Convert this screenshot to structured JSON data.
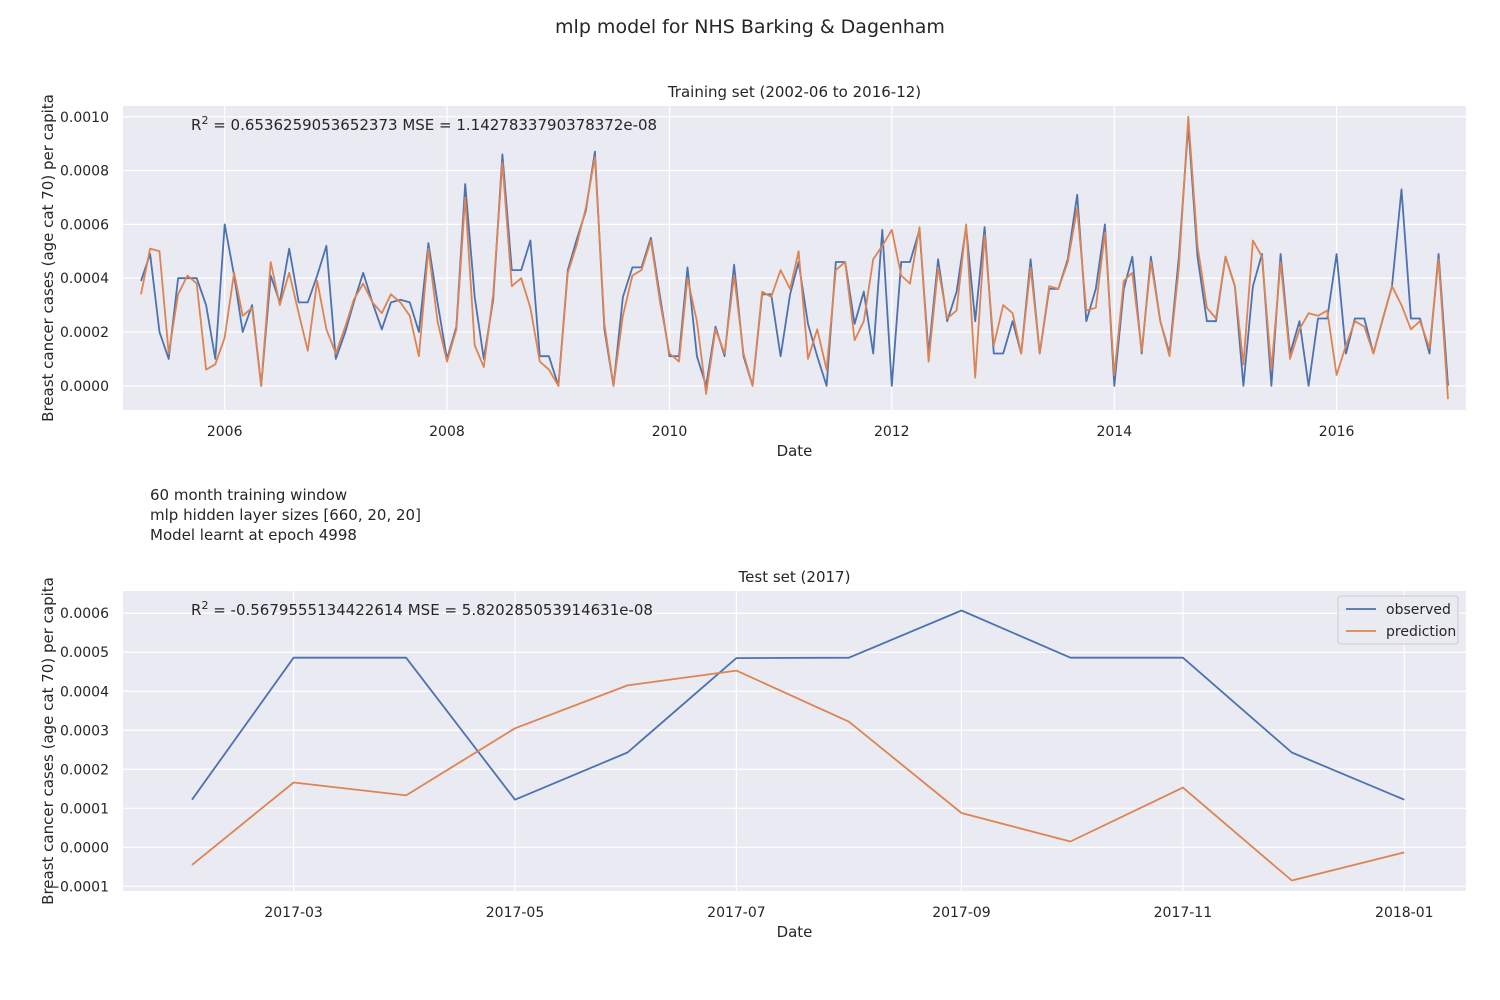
{
  "page_title": "mlp model for NHS Barking & Dagenham",
  "annotation_lines": [
    "60 month training window",
    "mlp hidden layer sizes [660, 20, 20]",
    "Model learnt at epoch 4998"
  ],
  "colors": {
    "observed": "#4c72b0",
    "prediction": "#dd8452",
    "plot_bg": "#eaeaf2",
    "grid": "#ffffff"
  },
  "chart_data": [
    {
      "type": "line",
      "title": "Training set (2002-06 to 2016-12)",
      "xlabel": "Date",
      "ylabel": "Breast cancer cases (age cat 70) per capita",
      "stats_prefix": "R",
      "stats_sup": "2",
      "stats_text": " = 0.6536259053652373  MSE = 1.1427833790378372e-08",
      "xlim": [
        "2005-02-01",
        "2017-03-01"
      ],
      "ylim": [
        -9e-05,
        0.00104
      ],
      "xticks": [
        {
          "date": "2006-01-01",
          "label": "2006"
        },
        {
          "date": "2008-01-01",
          "label": "2008"
        },
        {
          "date": "2010-01-01",
          "label": "2010"
        },
        {
          "date": "2012-01-01",
          "label": "2012"
        },
        {
          "date": "2014-01-01",
          "label": "2014"
        },
        {
          "date": "2016-01-01",
          "label": "2016"
        }
      ],
      "yticks": [
        0.0,
        0.0002,
        0.0004,
        0.0006,
        0.0008,
        0.001
      ],
      "ytick_labels": [
        "0.0000",
        "0.0002",
        "0.0004",
        "0.0006",
        "0.0008",
        "0.0010"
      ],
      "x_start": "2005-04-01",
      "series": [
        {
          "name": "observed",
          "values": [
            0.00039,
            0.00049,
            0.0002,
            0.0001,
            0.0004,
            0.0004,
            0.0004,
            0.0003,
            0.0001,
            0.0006,
            0.00041,
            0.0002,
            0.0003,
            0.0,
            0.00041,
            0.00031,
            0.00051,
            0.00031,
            0.00031,
            0.00041,
            0.00052,
            0.0001,
            0.0002,
            0.00031,
            0.00042,
            0.00031,
            0.00021,
            0.00031,
            0.00032,
            0.00031,
            0.0002,
            0.00053,
            0.00031,
            0.0001,
            0.00022,
            0.00075,
            0.00033,
            0.0001,
            0.00032,
            0.00086,
            0.00043,
            0.00043,
            0.00054,
            0.00011,
            0.00011,
            0.0,
            0.00043,
            0.00054,
            0.00065,
            0.00087,
            0.00021,
            0.0,
            0.00033,
            0.00044,
            0.00044,
            0.00055,
            0.00033,
            0.00011,
            0.00011,
            0.00044,
            0.00011,
            0.0,
            0.00022,
            0.00011,
            0.00045,
            0.00011,
            0.0,
            0.00034,
            0.00034,
            0.00011,
            0.00034,
            0.00046,
            0.00023,
            0.00011,
            0.0,
            0.00046,
            0.00046,
            0.00023,
            0.00035,
            0.00012,
            0.00058,
            0.0,
            0.00046,
            0.00046,
            0.00058,
            0.00012,
            0.00047,
            0.00024,
            0.00035,
            0.00059,
            0.00024,
            0.00059,
            0.00012,
            0.00012,
            0.00024,
            0.00012,
            0.00047,
            0.00012,
            0.00036,
            0.00036,
            0.00047,
            0.00071,
            0.00024,
            0.00036,
            0.0006,
            0.0,
            0.00036,
            0.00048,
            0.00012,
            0.00048,
            0.00024,
            0.00012,
            0.00048,
            0.00097,
            0.00048,
            0.00024,
            0.00024,
            0.00048,
            0.00037,
            0.0,
            0.00037,
            0.00049,
            0.0,
            0.00049,
            0.00012,
            0.00024,
            0.0,
            0.00025,
            0.00025,
            0.00049,
            0.00012,
            0.00025,
            0.00025,
            0.00012,
            0.00025,
            0.00037,
            0.00073,
            0.00025,
            0.00025,
            0.00012,
            0.00049,
            0.0
          ]
        },
        {
          "name": "prediction",
          "values": [
            0.00034,
            0.00051,
            0.0005,
            0.00012,
            0.00034,
            0.00041,
            0.00038,
            6e-05,
            8e-05,
            0.00018,
            0.00042,
            0.00026,
            0.00029,
            0.0,
            0.00046,
            0.0003,
            0.00042,
            0.00027,
            0.00013,
            0.00039,
            0.00021,
            0.00012,
            0.00022,
            0.00032,
            0.00038,
            0.00031,
            0.00027,
            0.00034,
            0.00031,
            0.00026,
            0.00011,
            0.00051,
            0.00024,
            9e-05,
            0.00021,
            0.0007,
            0.00015,
            7e-05,
            0.00034,
            0.00083,
            0.00037,
            0.0004,
            0.00029,
            9e-05,
            6e-05,
            0.0,
            0.00042,
            0.00052,
            0.00066,
            0.00085,
            0.00023,
            0.0,
            0.00026,
            0.00041,
            0.00043,
            0.00054,
            0.00031,
            0.00012,
            9e-05,
            0.0004,
            0.00024,
            -3e-05,
            0.00021,
            0.00012,
            0.00041,
            0.00012,
            0.0,
            0.00035,
            0.00033,
            0.00043,
            0.00036,
            0.0005,
            0.0001,
            0.00021,
            6e-05,
            0.00043,
            0.00046,
            0.00017,
            0.00024,
            0.00047,
            0.00052,
            0.00058,
            0.00041,
            0.00038,
            0.00059,
            9e-05,
            0.00044,
            0.00025,
            0.00028,
            0.0006,
            3e-05,
            0.00056,
            0.00015,
            0.0003,
            0.00027,
            0.00012,
            0.00044,
            0.00012,
            0.00037,
            0.00036,
            0.00046,
            0.00066,
            0.00028,
            0.00029,
            0.00057,
            4e-05,
            0.00039,
            0.00042,
            0.00013,
            0.00046,
            0.00024,
            0.00011,
            0.00044,
            0.001,
            0.00052,
            0.00029,
            0.00025,
            0.00048,
            0.00037,
            8e-05,
            0.00054,
            0.00048,
            6e-05,
            0.00046,
            0.0001,
            0.00021,
            0.00027,
            0.00026,
            0.00028,
            4e-05,
            0.00015,
            0.00024,
            0.00022,
            0.00012,
            0.00025,
            0.00037,
            0.0003,
            0.00021,
            0.00024,
            0.00014,
            0.00047,
            -5e-05
          ]
        }
      ]
    },
    {
      "type": "line",
      "title": "Test set (2017)",
      "xlabel": "Date",
      "ylabel": "Breast cancer cases (age cat 70) per capita",
      "stats_prefix": "R",
      "stats_sup": "2",
      "stats_text": " = -0.5679555134422614  MSE = 5.820285053914631e-08",
      "xlim": [
        "2017-01-13",
        "2018-01-18"
      ],
      "ylim": [
        -0.000112,
        0.000657
      ],
      "xticks": [
        {
          "date": "2017-03-01",
          "label": "2017-03"
        },
        {
          "date": "2017-05-01",
          "label": "2017-05"
        },
        {
          "date": "2017-07-01",
          "label": "2017-07"
        },
        {
          "date": "2017-09-01",
          "label": "2017-09"
        },
        {
          "date": "2017-11-01",
          "label": "2017-11"
        },
        {
          "date": "2018-01-01",
          "label": "2018-01"
        }
      ],
      "yticks": [
        -0.0001,
        0.0,
        0.0001,
        0.0002,
        0.0003,
        0.0004,
        0.0005,
        0.0006
      ],
      "ytick_labels": [
        "−0.0001",
        "0.0000",
        "0.0001",
        "0.0002",
        "0.0003",
        "0.0004",
        "0.0005",
        "0.0006"
      ],
      "x": [
        "2017-02-01",
        "2017-03-01",
        "2017-04-01",
        "2017-05-01",
        "2017-06-01",
        "2017-07-01",
        "2017-08-01",
        "2017-09-01",
        "2017-10-01",
        "2017-11-01",
        "2017-12-01",
        "2018-01-01"
      ],
      "series": [
        {
          "name": "observed",
          "values": [
            0.000122,
            0.000486,
            0.000486,
            0.000122,
            0.000243,
            0.000485,
            0.000486,
            0.000607,
            0.000486,
            0.000486,
            0.000243,
            0.000122
          ]
        },
        {
          "name": "prediction",
          "values": [
            -4.5e-05,
            0.000166,
            0.000133,
            0.000305,
            0.000415,
            0.000453,
            0.000322,
            8.8e-05,
            1.5e-05,
            0.000153,
            -8.5e-05,
            -1.3e-05
          ]
        }
      ],
      "legend": {
        "position": "upper-right",
        "entries": [
          "observed",
          "prediction"
        ]
      }
    }
  ]
}
